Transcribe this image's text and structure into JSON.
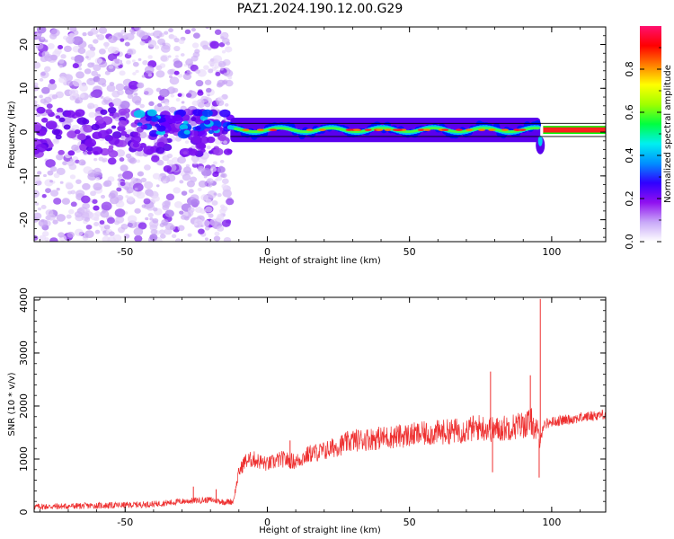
{
  "figure_title": "PAZ1.2024.190.12.00.G29",
  "chart_data": [
    {
      "type": "heatmap",
      "xlabel": "Height of straight line (km)",
      "ylabel": "Frequency (Hz)",
      "xlim": [
        -82,
        119
      ],
      "ylim": [
        -25,
        24
      ],
      "xticks": [
        -50,
        0,
        50,
        100
      ],
      "xtick_labels": [
        "-50",
        "0",
        "50",
        "100"
      ],
      "yticks": [
        -20,
        -10,
        0,
        10,
        20
      ],
      "ytick_labels": [
        "-20",
        "-10",
        "0",
        "10",
        "20"
      ],
      "colorbar": {
        "label": "Normalized spectral amplitude",
        "range": [
          0.0,
          1.0
        ],
        "ticks": [
          0.0,
          0.2,
          0.4,
          0.6,
          0.8
        ],
        "tick_labels": [
          "0.0",
          "0.2",
          "0.4",
          "0.6",
          "0.8"
        ],
        "colormap": [
          "#ffffff",
          "#c8a8f8",
          "#9010f0",
          "#3000ff",
          "#0090ff",
          "#00f0f0",
          "#00ff40",
          "#a0ff00",
          "#ffff00",
          "#ff8000",
          "#ff0000",
          "#ff1070"
        ]
      },
      "features": {
        "noise_region_x": [
          -82,
          -13
        ],
        "ridge_x": [
          -13,
          119
        ],
        "ridge_frequency_hz": 0.5,
        "step_x": 96
      }
    },
    {
      "type": "line",
      "xlabel": "Height of straight line (km)",
      "ylabel": "SNR (10 * v/v)",
      "xlim": [
        -82,
        119
      ],
      "ylim": [
        0,
        4050
      ],
      "xticks": [
        -50,
        0,
        50,
        100
      ],
      "xtick_labels": [
        "-50",
        "0",
        "50",
        "100"
      ],
      "yticks": [
        0,
        1000,
        2000,
        3000,
        4000
      ],
      "ytick_labels": [
        "0",
        "1000",
        "2000",
        "3000",
        "4000"
      ],
      "color": "#ee3030",
      "series": [
        {
          "x": [
            -82,
            -70,
            -60,
            -50,
            -40,
            -30,
            -25,
            -20,
            -15,
            -12,
            -10,
            -8,
            -5,
            0,
            5,
            10,
            15,
            20,
            25,
            30,
            40,
            50,
            60,
            70,
            75,
            80,
            85,
            90,
            93,
            95,
            96,
            97,
            100,
            110,
            119
          ],
          "y": [
            100,
            110,
            120,
            130,
            150,
            200,
            220,
            230,
            190,
            200,
            750,
            950,
            1000,
            900,
            1000,
            950,
            1100,
            1150,
            1250,
            1350,
            1400,
            1450,
            1500,
            1550,
            1600,
            1550,
            1600,
            1650,
            1700,
            1500,
            1300,
            1650,
            1700,
            1780,
            1850
          ]
        }
      ],
      "spikes": [
        {
          "x": 78.5,
          "y": 2650
        },
        {
          "x": 79.2,
          "y": 750
        },
        {
          "x": 92.5,
          "y": 2580
        },
        {
          "x": 96.0,
          "y": 4020
        },
        {
          "x": 95.6,
          "y": 650
        },
        {
          "x": -26,
          "y": 480
        },
        {
          "x": -18,
          "y": 430
        },
        {
          "x": 8,
          "y": 1350
        }
      ]
    }
  ]
}
